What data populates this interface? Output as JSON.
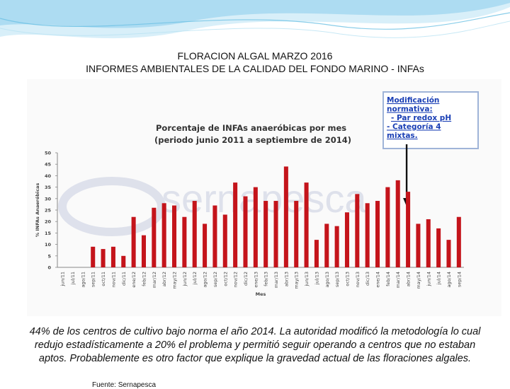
{
  "header": {
    "title_line1": "FLORACION ALGAL MARZO 2016",
    "title_line2": "INFORMES AMBIENTALES DE LA CALIDAD DEL FONDO MARINO - INFAs"
  },
  "colors": {
    "bar": "#c4141b",
    "annotation_text": "#1a3fb5",
    "annotation_border": "#9fb4d8",
    "watermark": "#2a3f8f",
    "deco_band": "#9fd6ef"
  },
  "chart_data": {
    "type": "bar",
    "title_line1": "Porcentaje de INFAs anaeróbicas por mes",
    "title_line2": "(periodo junio 2011 a septiembre de 2014)",
    "xlabel": "Mes",
    "ylabel": "% INFAs Anaeróbicas",
    "ylim": [
      0,
      50
    ],
    "yticks": [
      0,
      5,
      10,
      15,
      20,
      25,
      30,
      35,
      40,
      45,
      50
    ],
    "grid": false,
    "categories": [
      "jun/11",
      "jul/11",
      "ago/11",
      "sep/11",
      "oct/11",
      "nov/11",
      "dic/11",
      "ene/12",
      "feb/12",
      "mar/12",
      "abr/12",
      "may/12",
      "jun/12",
      "jul/12",
      "ago/12",
      "sep/12",
      "oct/12",
      "nov/12",
      "dic/12",
      "ene/13",
      "feb/13",
      "mar/13",
      "abr/13",
      "may/13",
      "jun/13",
      "jul/13",
      "ago/13",
      "sep/13",
      "oct/13",
      "nov/13",
      "dic/13",
      "ene/14",
      "feb/14",
      "mar/14",
      "abr/14",
      "may/14",
      "jun/14",
      "jul/14",
      "ago/14",
      "sep/14"
    ],
    "values": [
      0,
      0,
      0,
      9,
      8,
      9,
      5,
      22,
      14,
      26,
      28,
      27,
      22,
      29,
      19,
      27,
      23,
      37,
      31,
      35,
      29,
      29,
      44,
      29,
      37,
      12,
      19,
      18,
      24,
      32,
      28,
      29,
      35,
      38,
      33,
      19,
      21,
      17,
      12,
      22
    ],
    "annotation": {
      "lines": [
        "Modificación",
        "normativa:",
        "- Par redox pH",
        "- Categoría 4",
        "mixtas."
      ],
      "arrow_to": "abr/14"
    },
    "watermark": "sernapesca",
    "source": "Fuente: Sernapesca"
  },
  "footer": {
    "text": "44% de los centros de cultivo bajo norma el año 2014. La autoridad modificó la metodología lo cual redujo estadísticamente a 20% el problema y permitió seguir operando a centros que no estaban aptos. Probablemente es otro factor que explique la gravedad actual de las floraciones algales."
  }
}
